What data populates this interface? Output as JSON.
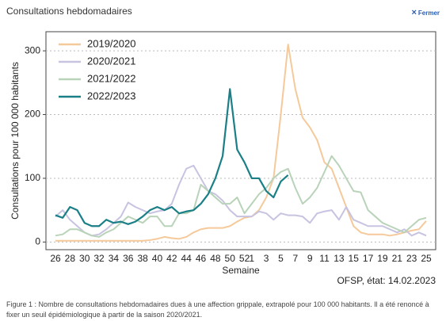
{
  "header": {
    "title": "Consultations hebdomadaires",
    "close": "Fermer"
  },
  "chart_data": {
    "type": "line",
    "ylabel": "Consultations pour 100 000 habitants",
    "xlabel": "Semaine",
    "categories": [
      "26",
      null,
      "28",
      null,
      "30",
      null,
      "32",
      null,
      "34",
      null,
      "36",
      null,
      "38",
      null,
      "40",
      null,
      "42",
      null,
      "44",
      null,
      "46",
      null,
      "48",
      null,
      "50",
      null,
      "52",
      "1",
      null,
      "3",
      null,
      "5",
      null,
      "7",
      null,
      "9",
      null,
      "11",
      null,
      "13",
      null,
      "15",
      null,
      "17",
      null,
      "19",
      null,
      "21",
      null,
      "23",
      null,
      "25"
    ],
    "ylim": [
      -12,
      330
    ],
    "yticks": [
      0,
      100,
      200,
      300
    ],
    "grid": true,
    "legend": "upper left",
    "series": [
      {
        "name": "2019/2020",
        "color": "#f5c99a",
        "values": [
          2,
          2,
          2,
          2,
          2,
          2,
          2,
          2,
          2,
          2,
          2,
          2,
          2,
          3,
          5,
          8,
          6,
          5,
          8,
          15,
          20,
          22,
          22,
          22,
          25,
          32,
          38,
          40,
          50,
          70,
          100,
          200,
          310,
          240,
          195,
          180,
          160,
          125,
          115,
          85,
          55,
          25,
          15,
          12,
          12,
          12,
          10,
          12,
          15,
          18,
          20,
          33
        ]
      },
      {
        "name": "2020/2021",
        "color": "#c8c3e0",
        "values": [
          40,
          50,
          35,
          25,
          15,
          10,
          12,
          20,
          30,
          40,
          62,
          55,
          50,
          45,
          48,
          50,
          60,
          90,
          115,
          120,
          100,
          80,
          75,
          65,
          50,
          40,
          40,
          40,
          48,
          45,
          35,
          45,
          42,
          42,
          40,
          30,
          45,
          48,
          50,
          35,
          55,
          35,
          30,
          25,
          25,
          25,
          20,
          15,
          20,
          10,
          15,
          10
        ]
      },
      {
        "name": "2021/2022",
        "color": "#b9d3b9",
        "values": [
          10,
          12,
          20,
          20,
          15,
          10,
          8,
          15,
          20,
          30,
          40,
          35,
          30,
          40,
          40,
          25,
          25,
          45,
          45,
          50,
          90,
          80,
          70,
          60,
          60,
          70,
          45,
          60,
          75,
          85,
          100,
          110,
          115,
          85,
          60,
          70,
          85,
          110,
          135,
          120,
          100,
          80,
          78,
          50,
          40,
          30,
          25,
          20,
          15,
          25,
          35,
          38
        ]
      },
      {
        "name": "2022/2023",
        "color": "#1a7f86",
        "values": [
          42,
          38,
          55,
          50,
          30,
          25,
          25,
          35,
          30,
          32,
          28,
          32,
          40,
          50,
          55,
          50,
          55,
          45,
          48,
          50,
          60,
          75,
          100,
          135,
          240,
          145,
          125,
          100,
          100,
          80,
          70,
          95,
          105,
          null,
          null,
          null,
          null,
          null,
          null,
          null,
          null,
          null,
          null,
          null,
          null,
          null,
          null,
          null,
          null,
          null,
          null,
          null
        ]
      }
    ],
    "source": "OFSP, état: 14.02.2023"
  },
  "caption": "Figure 1 : Nombre de consultations hebdomadaires dues à une affection grippale, extrapolé pour 100 000 habitants. Il a été renoncé à fixer un seuil épidémiologique à partir de la saison 2020/2021."
}
